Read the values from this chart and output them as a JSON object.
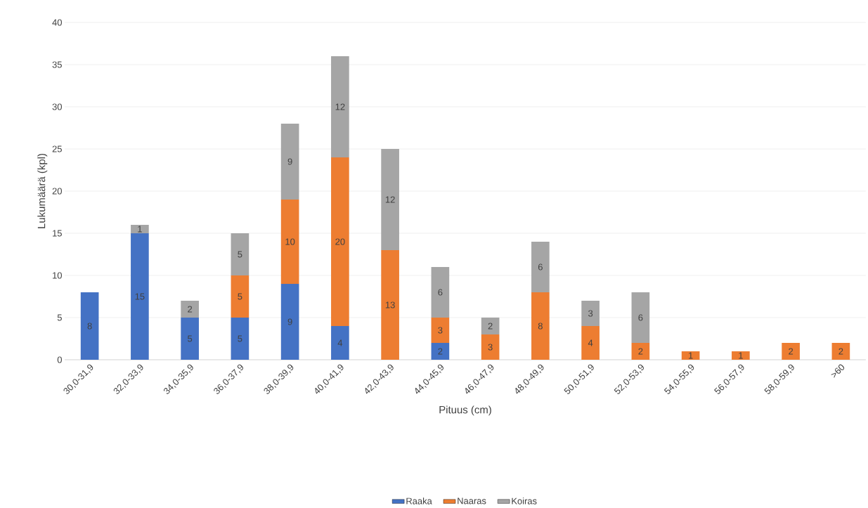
{
  "chart_data": {
    "type": "bar",
    "stacked": true,
    "xlabel": "Pituus (cm)",
    "ylabel": "Lukumäärä (kpl)",
    "categories": [
      "30,0-31,9",
      "32,0-33,9",
      "34,0-35,9",
      "36,0-37,9",
      "38,0-39,9",
      "40,0-41,9",
      "42,0-43,9",
      "44,0-45,9",
      "46,0-47,9",
      "48,0-49,9",
      "50,0-51,9",
      "52,0-53,9",
      "54,0-55,9",
      "56,0-57,9",
      "58,0-59,9",
      ">60"
    ],
    "series": [
      {
        "name": "Raaka",
        "color": "#4472c4",
        "values": [
          8,
          15,
          5,
          5,
          9,
          4,
          null,
          2,
          null,
          null,
          null,
          null,
          null,
          null,
          null,
          null
        ]
      },
      {
        "name": "Naaras",
        "color": "#ed7d31",
        "values": [
          null,
          null,
          null,
          5,
          10,
          20,
          13,
          3,
          3,
          8,
          4,
          2,
          1,
          1,
          2,
          2
        ]
      },
      {
        "name": "Koiras",
        "color": "#a5a5a5",
        "values": [
          null,
          1,
          2,
          5,
          9,
          12,
          12,
          6,
          2,
          6,
          3,
          6,
          null,
          null,
          null,
          null
        ]
      }
    ],
    "ylim": [
      0,
      40
    ],
    "yticks": [
      0,
      5,
      10,
      15,
      20,
      25,
      30,
      35,
      40
    ],
    "grid": "y",
    "legend": "bottom",
    "data_labels": true
  }
}
